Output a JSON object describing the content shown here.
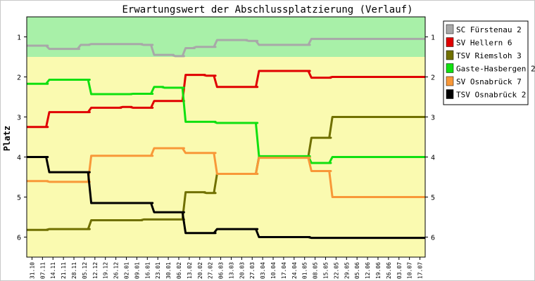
{
  "chart_data": {
    "type": "line",
    "title": "Erwartungswert der Abschlussplatzierung (Verlauf)",
    "ylabel": "Platz",
    "xlabel": "",
    "ylim": [
      0.5,
      6.5
    ],
    "y_inverted": true,
    "yticks": [
      1,
      2,
      3,
      4,
      5,
      6
    ],
    "grid": false,
    "legend_position": "right",
    "bands": [
      {
        "from": 0.5,
        "to": 1.5,
        "color": "#a8f0a8"
      },
      {
        "from": 1.5,
        "to": 6.5,
        "color": "#fafab0"
      }
    ],
    "categories": [
      "31.10",
      "07.11",
      "14.11",
      "21.11",
      "28.11",
      "05.12",
      "12.12",
      "19.12",
      "26.12",
      "02.01",
      "09.01",
      "16.01",
      "23.01",
      "30.01",
      "06.02",
      "13.02",
      "20.02",
      "27.02",
      "06.03",
      "13.03",
      "20.03",
      "27.03",
      "03.04",
      "10.04",
      "17.04",
      "24.04",
      "01.05",
      "08.05",
      "15.05",
      "22.05",
      "29.05",
      "05.06",
      "12.06",
      "19.06",
      "26.06",
      "03.07",
      "10.07",
      "17.07"
    ],
    "series": [
      {
        "name": "SC Fürstenau 2",
        "color": "#a8a8a8",
        "values": [
          1.22,
          1.22,
          1.3,
          1.3,
          1.3,
          1.2,
          1.18,
          1.18,
          1.18,
          1.18,
          1.18,
          1.2,
          1.45,
          1.45,
          1.48,
          1.28,
          1.25,
          1.25,
          1.08,
          1.08,
          1.08,
          1.1,
          1.2,
          1.2,
          1.2,
          1.2,
          1.2,
          1.05,
          1.05,
          1.05,
          1.05,
          1.05,
          1.05,
          1.05,
          1.05,
          1.05,
          1.05,
          1.05
        ]
      },
      {
        "name": "SV Hellern 6",
        "color": "#e00000",
        "values": [
          3.25,
          3.25,
          2.88,
          2.88,
          2.88,
          2.88,
          2.77,
          2.77,
          2.77,
          2.75,
          2.77,
          2.77,
          2.6,
          2.6,
          2.6,
          1.95,
          1.95,
          1.97,
          2.25,
          2.25,
          2.25,
          2.25,
          1.85,
          1.85,
          1.85,
          1.85,
          1.85,
          2.02,
          2.02,
          2.0,
          2.0,
          2.0,
          2.0,
          2.0,
          2.0,
          2.0,
          2.0,
          2.0
        ]
      },
      {
        "name": "TSV Riemsloh 3",
        "color": "#707000",
        "values": [
          5.82,
          5.82,
          5.8,
          5.8,
          5.8,
          5.8,
          5.58,
          5.58,
          5.58,
          5.58,
          5.58,
          5.56,
          5.56,
          5.56,
          5.56,
          4.88,
          4.88,
          4.9,
          4.42,
          4.42,
          4.42,
          4.42,
          4.0,
          4.0,
          4.0,
          4.0,
          4.0,
          3.52,
          3.52,
          3.0,
          3.0,
          3.0,
          3.0,
          3.0,
          3.0,
          3.0,
          3.0,
          3.0
        ]
      },
      {
        "name": "Gaste-Hasbergen 2",
        "color": "#10e010",
        "values": [
          2.17,
          2.17,
          2.07,
          2.07,
          2.07,
          2.07,
          2.43,
          2.43,
          2.43,
          2.43,
          2.42,
          2.42,
          2.25,
          2.27,
          2.27,
          3.12,
          3.12,
          3.12,
          3.15,
          3.15,
          3.15,
          3.15,
          3.98,
          3.98,
          3.98,
          3.98,
          3.98,
          4.15,
          4.15,
          4.0,
          4.0,
          4.0,
          4.0,
          4.0,
          4.0,
          4.0,
          4.0,
          4.0
        ]
      },
      {
        "name": "SV Osnabrück 7",
        "color": "#f89838",
        "values": [
          4.6,
          4.6,
          4.62,
          4.62,
          4.62,
          4.62,
          3.97,
          3.97,
          3.97,
          3.97,
          3.97,
          3.97,
          3.78,
          3.78,
          3.78,
          3.9,
          3.9,
          3.9,
          4.42,
          4.42,
          4.42,
          4.42,
          4.02,
          4.02,
          4.02,
          4.02,
          4.02,
          4.35,
          4.35,
          5.0,
          5.0,
          5.0,
          5.0,
          5.0,
          5.0,
          5.0,
          5.0,
          5.0
        ]
      },
      {
        "name": "TSV Osnabrück 2",
        "color": "#000000",
        "values": [
          4.0,
          4.0,
          4.38,
          4.38,
          4.38,
          4.38,
          5.15,
          5.15,
          5.15,
          5.15,
          5.15,
          5.15,
          5.38,
          5.38,
          5.38,
          5.9,
          5.9,
          5.9,
          5.8,
          5.8,
          5.8,
          5.8,
          6.0,
          6.0,
          6.0,
          6.0,
          6.0,
          6.02,
          6.02,
          6.02,
          6.02,
          6.02,
          6.02,
          6.02,
          6.02,
          6.02,
          6.02,
          6.02
        ]
      }
    ]
  }
}
